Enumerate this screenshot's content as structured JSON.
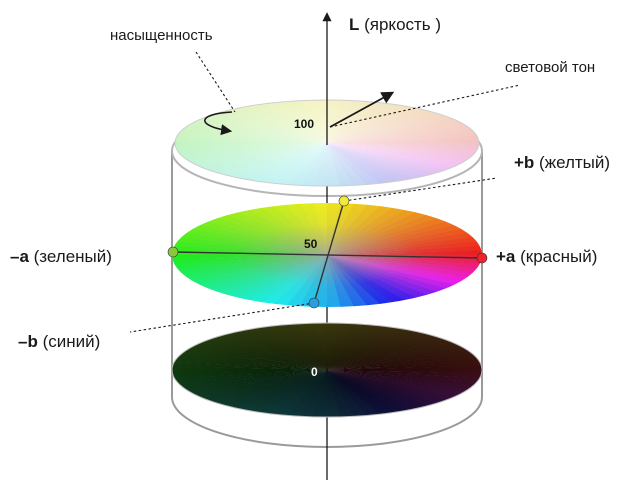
{
  "axis": {
    "bold": "L",
    "rest": " (яркость )"
  },
  "labels": {
    "saturation": "насыщенность",
    "hue": "световой тон",
    "plus_b": {
      "bold": "+b",
      "rest": " (желтый)"
    },
    "minus_a": {
      "bold": "–a",
      "rest": " (зеленый)"
    },
    "plus_a": {
      "bold": "+a",
      "rest": " (красный)"
    },
    "minus_b": {
      "bold": "–b",
      "rest": " (синий)"
    }
  },
  "levels": {
    "top": "100",
    "mid": "50",
    "bottom": "0"
  },
  "colors": {
    "red": "#e8262c",
    "yellow": "#f2ea3b",
    "green": "#8bc63f",
    "blue": "#2a9fe0",
    "outline": "#9a9a9a",
    "text": "#1a1a1a"
  }
}
